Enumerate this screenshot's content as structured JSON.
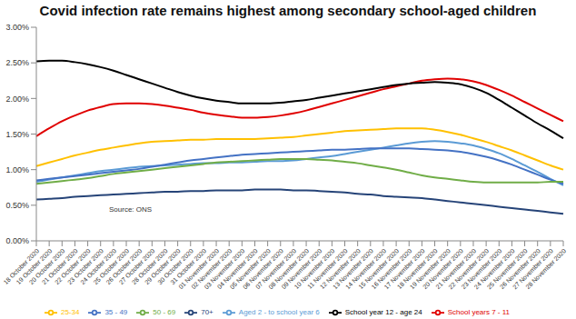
{
  "chart_data": {
    "type": "line",
    "title": "Covid infection rate remains highest among secondary school-aged children",
    "annotations": [
      {
        "text": "Source: ONS"
      }
    ],
    "categories": [
      "18 October 2020",
      "19 October 2020",
      "20 October 2020",
      "21 October 2020",
      "22 October 2020",
      "23 October 2020",
      "24 October 2020",
      "25 October 2020",
      "26 October 2020",
      "27 October 2020",
      "28 October 2020",
      "29 October 2020",
      "30 October 2020",
      "31 October 2020",
      "01 November 2020",
      "02 November 2020",
      "03 November 2020",
      "04 November 2020",
      "05 November 2020",
      "06 November 2020",
      "07 November 2020",
      "08 November 2020",
      "09 November 2020",
      "10 November 2020",
      "11 November 2020",
      "12 November 2020",
      "13 November 2020",
      "14 November 2020",
      "15 November 2020",
      "16 November 2020",
      "17 November 2020",
      "18 November 2020",
      "19 November 2020",
      "20 November 2020",
      "21 November 2020",
      "22 November 2020",
      "23 November 2020",
      "24 November 2020",
      "25 November 2020",
      "26 November 2020",
      "27 November 2020",
      "28 November 2020"
    ],
    "series": [
      {
        "name": "Aged 2 - to school year 6",
        "color": "#5b9bd5",
        "values": [
          0.83,
          0.86,
          0.89,
          0.92,
          0.95,
          0.98,
          1.0,
          1.02,
          1.04,
          1.05,
          1.06,
          1.07,
          1.08,
          1.09,
          1.09,
          1.1,
          1.1,
          1.11,
          1.12,
          1.12,
          1.13,
          1.15,
          1.17,
          1.19,
          1.22,
          1.25,
          1.28,
          1.31,
          1.34,
          1.37,
          1.39,
          1.4,
          1.39,
          1.37,
          1.34,
          1.29,
          1.23,
          1.15,
          1.06,
          0.97,
          0.87,
          0.78
        ]
      },
      {
        "name": "School years 7 - 11",
        "color": "#e00000",
        "values": [
          1.47,
          1.58,
          1.68,
          1.76,
          1.83,
          1.88,
          1.92,
          1.93,
          1.93,
          1.92,
          1.9,
          1.87,
          1.84,
          1.8,
          1.77,
          1.75,
          1.73,
          1.73,
          1.74,
          1.76,
          1.79,
          1.83,
          1.88,
          1.93,
          1.98,
          2.03,
          2.08,
          2.13,
          2.17,
          2.21,
          2.25,
          2.27,
          2.28,
          2.27,
          2.24,
          2.19,
          2.12,
          2.04,
          1.95,
          1.86,
          1.77,
          1.68
        ]
      },
      {
        "name": "School year 12 - age 24",
        "color": "#000000",
        "values": [
          2.52,
          2.53,
          2.53,
          2.51,
          2.48,
          2.44,
          2.39,
          2.33,
          2.27,
          2.21,
          2.15,
          2.09,
          2.04,
          2.0,
          1.97,
          1.95,
          1.93,
          1.93,
          1.93,
          1.94,
          1.96,
          1.98,
          2.01,
          2.04,
          2.07,
          2.1,
          2.13,
          2.16,
          2.19,
          2.21,
          2.22,
          2.23,
          2.22,
          2.2,
          2.15,
          2.08,
          1.98,
          1.87,
          1.76,
          1.65,
          1.55,
          1.44
        ]
      },
      {
        "name": "25-34",
        "color": "#ffc000",
        "values": [
          1.05,
          1.1,
          1.15,
          1.2,
          1.24,
          1.28,
          1.31,
          1.34,
          1.37,
          1.39,
          1.4,
          1.41,
          1.42,
          1.42,
          1.43,
          1.43,
          1.43,
          1.43,
          1.44,
          1.45,
          1.46,
          1.48,
          1.5,
          1.52,
          1.54,
          1.55,
          1.56,
          1.57,
          1.58,
          1.58,
          1.58,
          1.56,
          1.53,
          1.49,
          1.44,
          1.39,
          1.33,
          1.27,
          1.2,
          1.13,
          1.06,
          1.0
        ]
      },
      {
        "name": "35 - 49",
        "color": "#4472c4",
        "values": [
          0.85,
          0.87,
          0.89,
          0.91,
          0.93,
          0.95,
          0.97,
          0.99,
          1.01,
          1.04,
          1.07,
          1.1,
          1.13,
          1.15,
          1.17,
          1.19,
          1.21,
          1.22,
          1.23,
          1.24,
          1.25,
          1.26,
          1.27,
          1.28,
          1.28,
          1.29,
          1.3,
          1.3,
          1.3,
          1.3,
          1.29,
          1.28,
          1.27,
          1.25,
          1.22,
          1.18,
          1.13,
          1.07,
          1.0,
          0.93,
          0.86,
          0.8
        ]
      },
      {
        "name": "50 - 69",
        "color": "#70ad47",
        "values": [
          0.8,
          0.82,
          0.84,
          0.86,
          0.88,
          0.91,
          0.94,
          0.96,
          0.98,
          1.0,
          1.02,
          1.04,
          1.06,
          1.08,
          1.1,
          1.11,
          1.12,
          1.13,
          1.14,
          1.15,
          1.15,
          1.15,
          1.14,
          1.13,
          1.11,
          1.09,
          1.06,
          1.03,
          1.0,
          0.96,
          0.92,
          0.89,
          0.87,
          0.85,
          0.83,
          0.82,
          0.82,
          0.82,
          0.82,
          0.82,
          0.83,
          0.83
        ]
      },
      {
        "name": "70+",
        "color": "#264478",
        "values": [
          0.58,
          0.59,
          0.6,
          0.62,
          0.63,
          0.64,
          0.65,
          0.66,
          0.67,
          0.68,
          0.69,
          0.69,
          0.7,
          0.7,
          0.71,
          0.71,
          0.71,
          0.72,
          0.72,
          0.72,
          0.71,
          0.71,
          0.7,
          0.69,
          0.68,
          0.66,
          0.65,
          0.63,
          0.62,
          0.61,
          0.6,
          0.58,
          0.56,
          0.54,
          0.52,
          0.5,
          0.48,
          0.46,
          0.44,
          0.42,
          0.4,
          0.38
        ]
      }
    ],
    "ylim": [
      0,
      3
    ],
    "yticks": [
      {
        "value": 0,
        "label": "0.00%"
      },
      {
        "value": 0.5,
        "label": "0.50%"
      },
      {
        "value": 1,
        "label": "1.00%"
      },
      {
        "value": 1.5,
        "label": "1.50%"
      },
      {
        "value": 2,
        "label": "2.00%"
      },
      {
        "value": 2.5,
        "label": "2.50%"
      },
      {
        "value": 3,
        "label": "3.00%"
      }
    ],
    "grid": false,
    "legend": "bottom"
  }
}
